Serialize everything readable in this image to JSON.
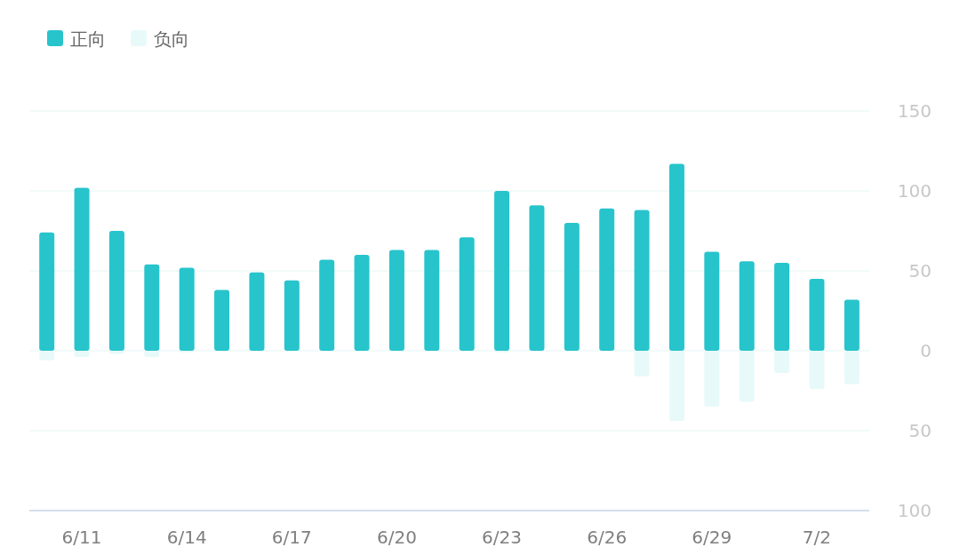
{
  "chart_data": {
    "type": "bar",
    "stacked": true,
    "legend": "top left",
    "grid": "y",
    "categories": [
      null,
      "6/11",
      null,
      null,
      "6/14",
      null,
      null,
      "6/17",
      null,
      null,
      "6/20",
      null,
      null,
      "6/23",
      null,
      null,
      "6/26",
      null,
      null,
      "6/29",
      null,
      null,
      "7/2",
      null
    ],
    "series": [
      {
        "name": "正向",
        "color": "#27c4cc",
        "values": [
          74,
          102,
          75,
          54,
          52,
          38,
          49,
          44,
          57,
          60,
          63,
          63,
          71,
          100,
          91,
          80,
          89,
          88,
          117,
          62,
          56,
          55,
          45,
          32
        ]
      },
      {
        "name": "负向",
        "color": "#e8f9fa",
        "values": [
          -6,
          -4,
          -2,
          -4,
          -1,
          0,
          0,
          0,
          0,
          0,
          0,
          0,
          0,
          -1,
          0,
          0,
          0,
          -16,
          -44,
          -35,
          -32,
          -14,
          -24,
          -21
        ]
      }
    ],
    "ylim": [
      -100,
      150
    ],
    "yticks": [
      {
        "value": -100,
        "label": "100"
      },
      {
        "value": -50,
        "label": "50"
      },
      0,
      50,
      100,
      150
    ]
  }
}
